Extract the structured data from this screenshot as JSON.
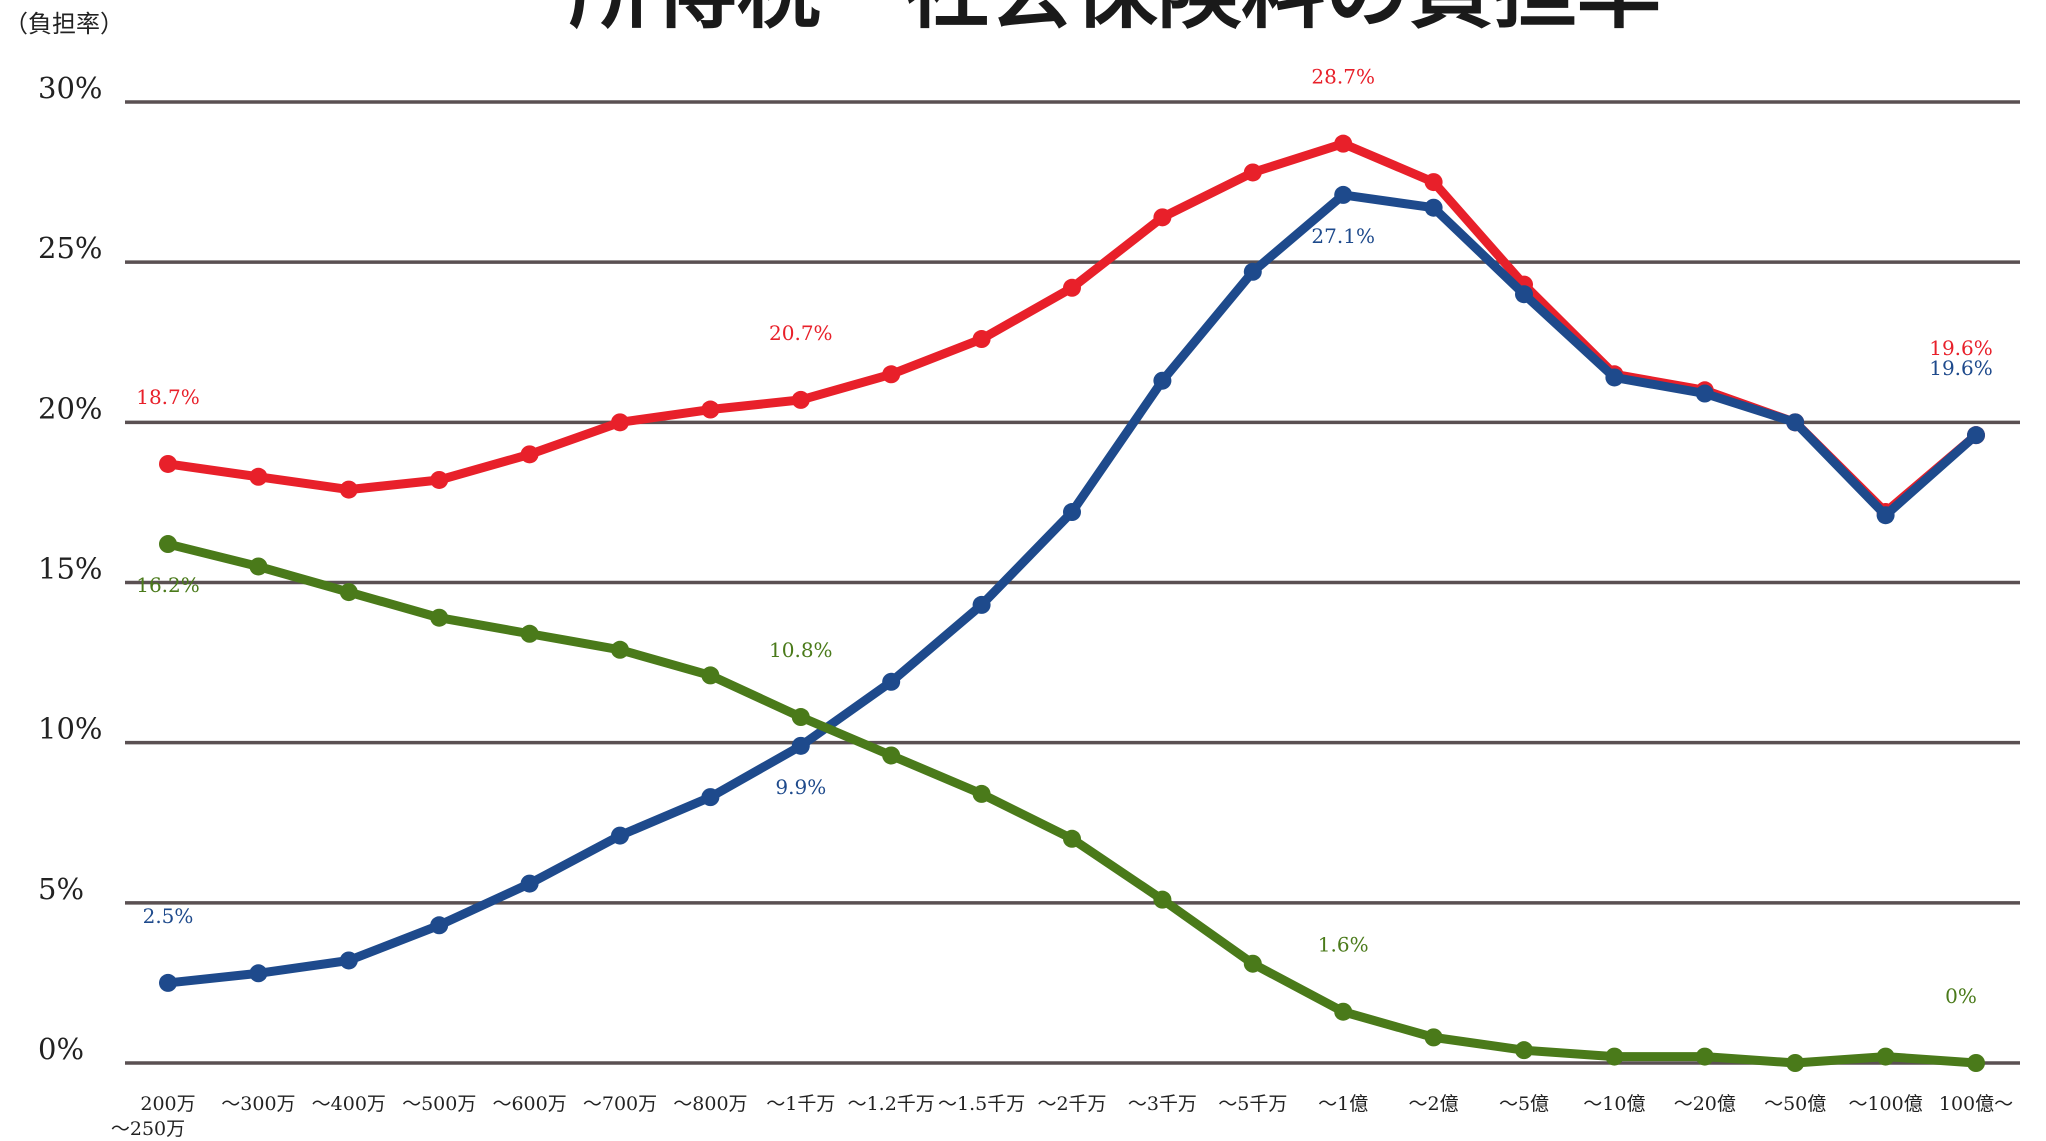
{
  "chart_data": {
    "type": "line",
    "title": "所得税・社会保険料の負担率",
    "ylabel": "（負担率）",
    "ylim": [
      0,
      30
    ],
    "y_ticks": [
      "0%",
      "5%",
      "10%",
      "15%",
      "20%",
      "25%",
      "30%"
    ],
    "grid": true,
    "categories": [
      "200万",
      "～300万",
      "～400万",
      "～500万",
      "～600万",
      "～700万",
      "～800万",
      "～1千万",
      "～1.2千万",
      "～1.5千万",
      "～2千万",
      "～3千万",
      "～5千万",
      "～1億",
      "～2億",
      "～5億",
      "～10億",
      "～20億",
      "～50億",
      "～100億",
      "100億～"
    ],
    "first_category_sublabel": "～250万",
    "series": [
      {
        "color": "#e8202a",
        "values": [
          18.7,
          18.3,
          17.9,
          18.2,
          19.0,
          20.0,
          20.4,
          20.7,
          21.5,
          22.6,
          24.2,
          26.4,
          27.8,
          28.7,
          27.5,
          24.3,
          21.5,
          21.0,
          20.0,
          17.2,
          19.6
        ],
        "labels": [
          {
            "index": 0,
            "text": "18.7%",
            "pos": "above"
          },
          {
            "index": 7,
            "text": "20.7%",
            "pos": "above"
          },
          {
            "index": 13,
            "text": "28.7%",
            "pos": "above"
          },
          {
            "index": 20,
            "text": "19.6%",
            "pos": "above-high"
          }
        ]
      },
      {
        "color": "#1e4a8c",
        "values": [
          2.5,
          2.8,
          3.2,
          4.3,
          5.6,
          7.1,
          8.3,
          9.9,
          11.9,
          14.3,
          17.2,
          21.3,
          24.7,
          27.1,
          26.7,
          24.0,
          21.4,
          20.9,
          20.0,
          17.1,
          19.6
        ],
        "labels": [
          {
            "index": 0,
            "text": "2.5%",
            "pos": "above"
          },
          {
            "index": 7,
            "text": "9.9%",
            "pos": "below"
          },
          {
            "index": 13,
            "text": "27.1%",
            "pos": "below"
          },
          {
            "index": 20,
            "text": "19.6%",
            "pos": "above"
          }
        ]
      },
      {
        "color": "#4a7a1a",
        "values": [
          16.2,
          15.5,
          14.7,
          13.9,
          13.4,
          12.9,
          12.1,
          10.8,
          9.6,
          8.4,
          7.0,
          5.1,
          3.1,
          1.6,
          0.8,
          0.4,
          0.2,
          0.2,
          0.0,
          0.2,
          0.0
        ],
        "labels": [
          {
            "index": 0,
            "text": "16.2%",
            "pos": "below"
          },
          {
            "index": 7,
            "text": "10.8%",
            "pos": "above"
          },
          {
            "index": 13,
            "text": "1.6%",
            "pos": "above"
          },
          {
            "index": 20,
            "text": "0%",
            "pos": "above"
          }
        ]
      }
    ]
  }
}
